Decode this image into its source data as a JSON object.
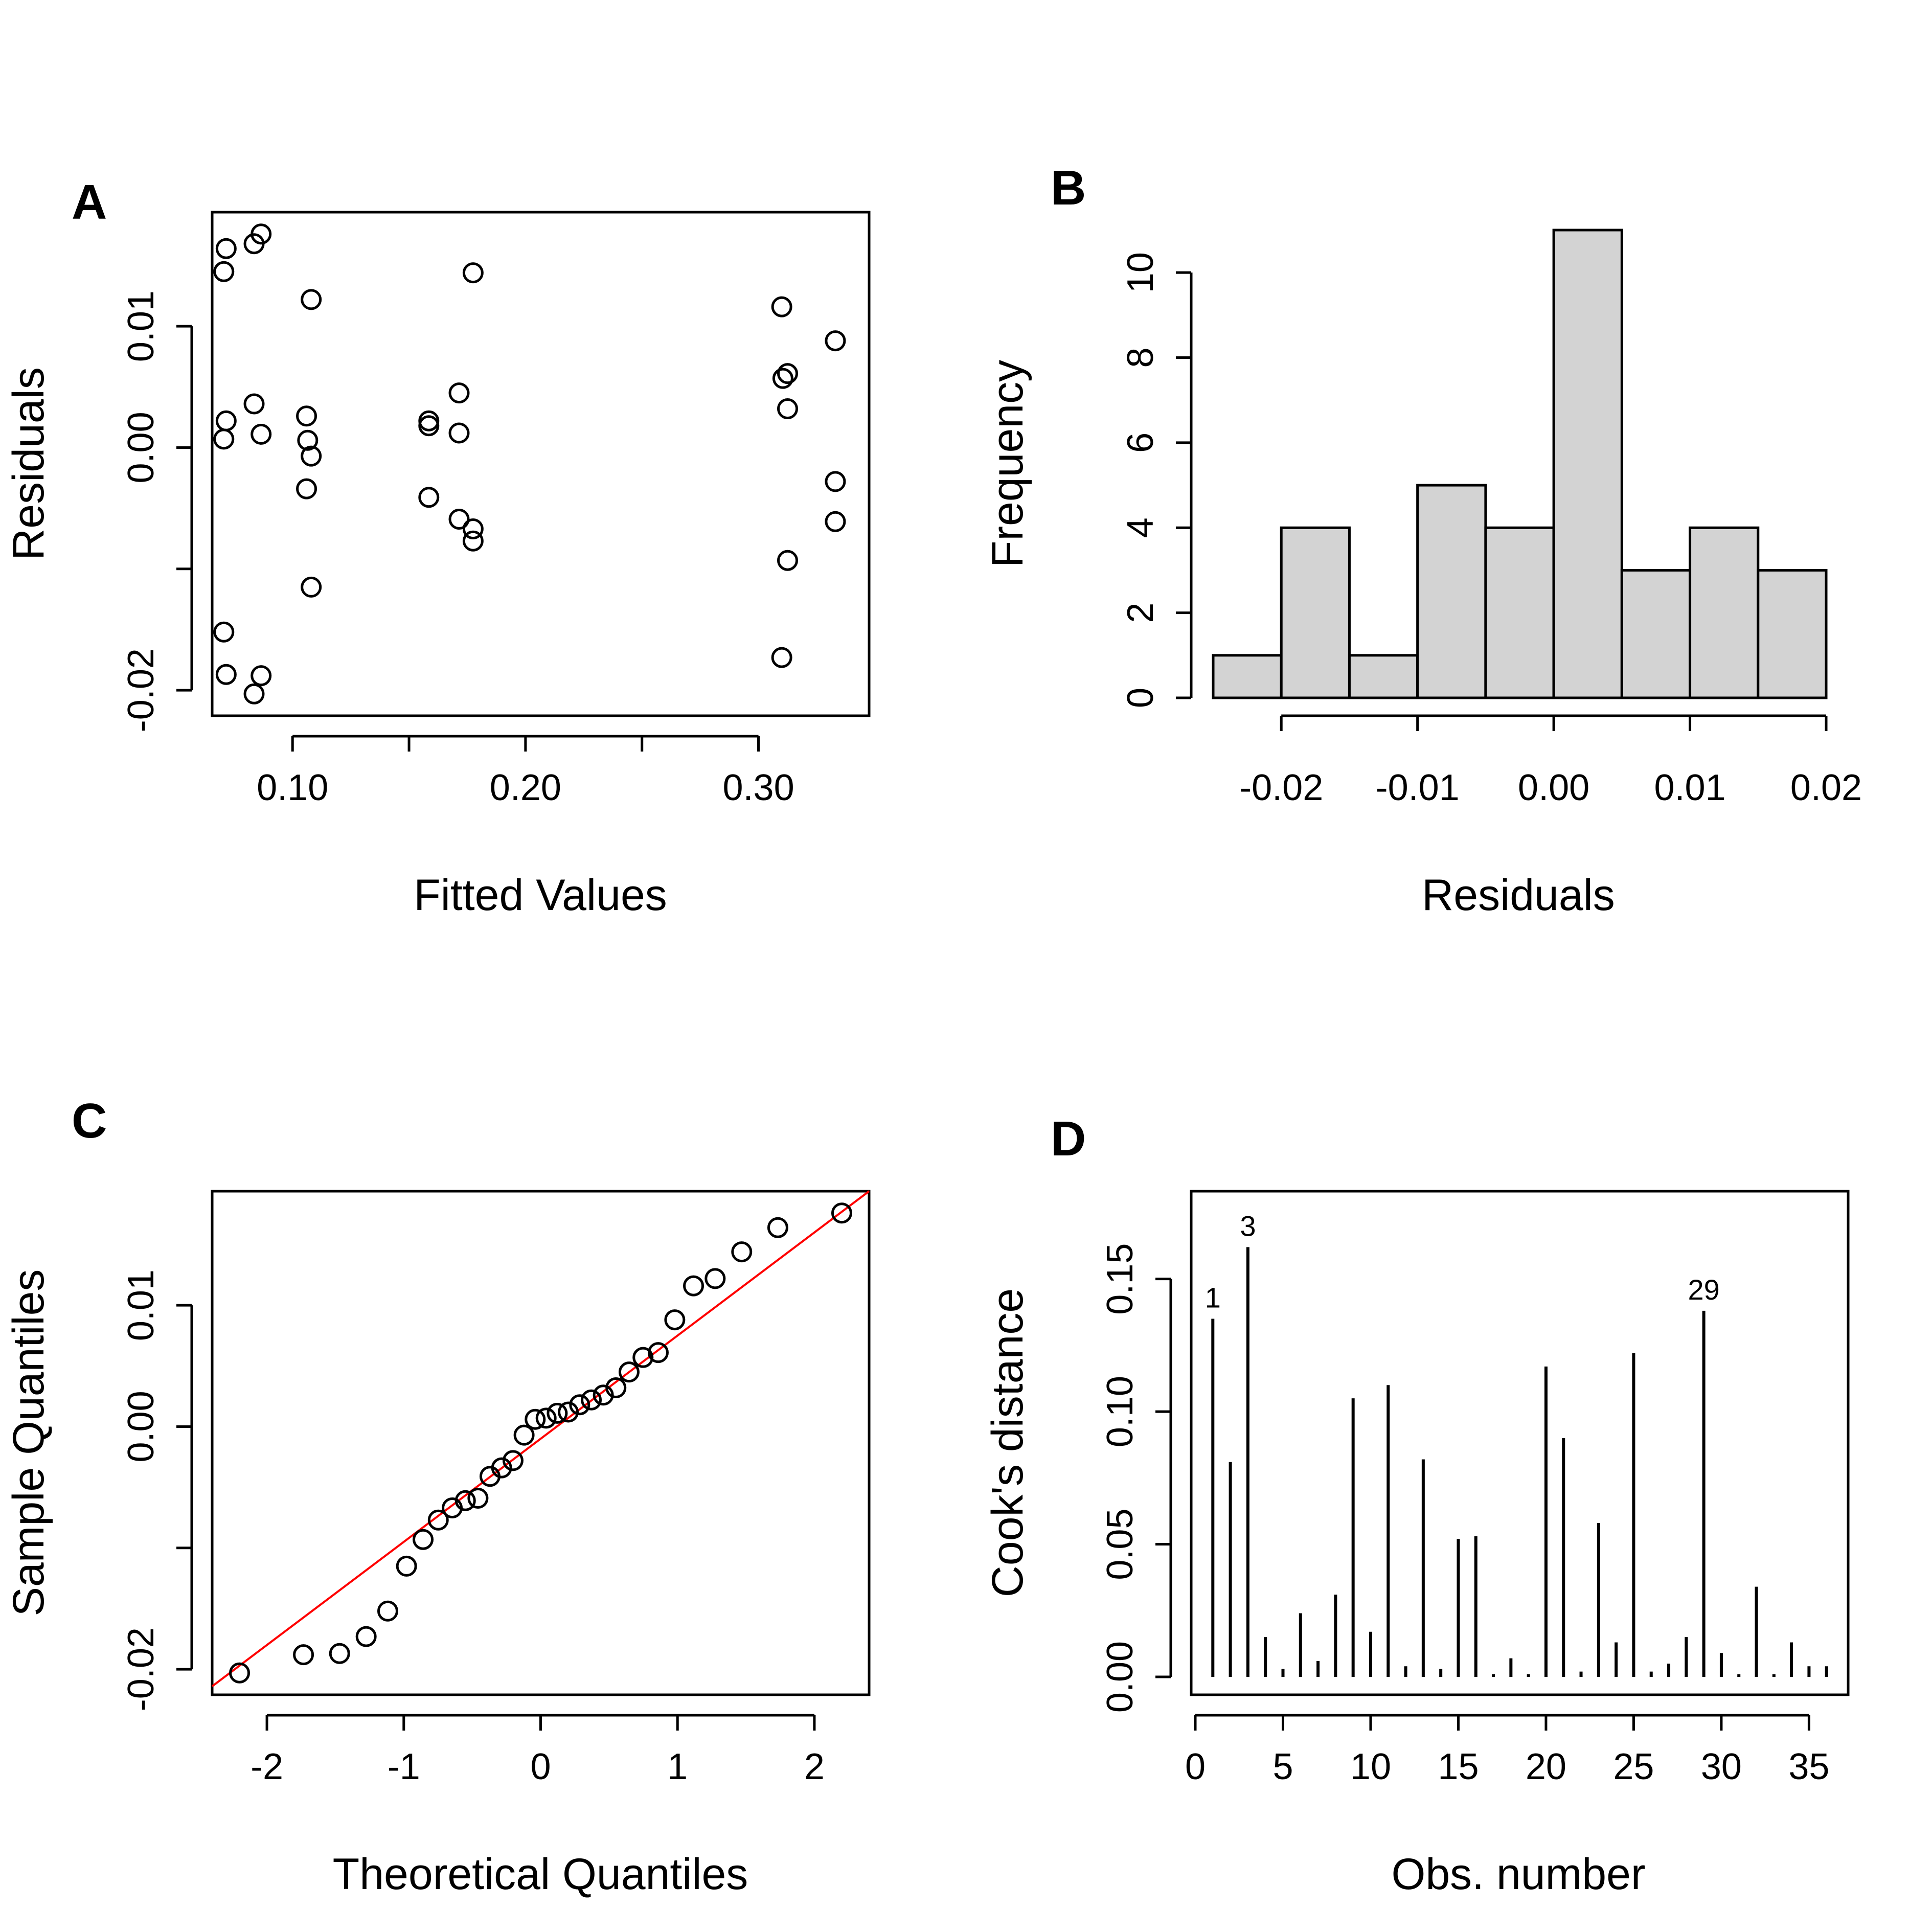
{
  "chart_data": [
    {
      "type": "scatter",
      "panel_label": "A",
      "xlabel": "Fitted Values",
      "ylabel": "Residuals",
      "xlim": [
        0.0655,
        0.3475
      ],
      "ylim": [
        -0.0221,
        0.0194
      ],
      "xticks": [
        0.1,
        0.15,
        0.2,
        0.25,
        0.3
      ],
      "xtick_labels": [
        "0.10",
        "",
        "0.20",
        "",
        "0.30"
      ],
      "yticks": [
        -0.02,
        -0.01,
        0.0,
        0.01
      ],
      "ytick_labels": [
        "-0.02",
        "",
        "0.00",
        "0.01"
      ],
      "x": [
        0.0715,
        0.0705,
        0.0835,
        0.0865,
        0.108,
        0.0715,
        0.0835,
        0.0705,
        0.0865,
        0.106,
        0.1065,
        0.108,
        0.106,
        0.108,
        0.0705,
        0.0715,
        0.0865,
        0.0835,
        0.1775,
        0.1585,
        0.1585,
        0.1715,
        0.1715,
        0.1585,
        0.1715,
        0.1775,
        0.1775,
        0.31,
        0.333,
        0.3105,
        0.3125,
        0.3125,
        0.333,
        0.333,
        0.3125,
        0.31
      ],
      "y": [
        0.0164,
        0.0145,
        0.0168,
        0.0176,
        0.0122,
        0.0022,
        0.0036,
        0.0007,
        0.0011,
        0.0026,
        0.0006,
        -0.0007,
        -0.0034,
        -0.0115,
        -0.0152,
        -0.0187,
        -0.0188,
        -0.0203,
        0.0144,
        0.0022,
        0.0018,
        0.0045,
        0.0012,
        -0.0041,
        -0.0059,
        -0.0067,
        -0.0077,
        0.0116,
        0.0088,
        0.0057,
        0.0061,
        0.0032,
        -0.0028,
        -0.0061,
        -0.0093,
        -0.0173
      ]
    },
    {
      "type": "bar",
      "subtype": "histogram",
      "panel_label": "B",
      "xlabel": "Residuals",
      "ylabel": "Frequency",
      "bin_edges": [
        -0.025,
        -0.02,
        -0.015,
        -0.01,
        -0.005,
        0.0,
        0.005,
        0.01,
        0.015,
        0.02
      ],
      "values": [
        1,
        4,
        1,
        5,
        4,
        11,
        3,
        4,
        3
      ],
      "xlim": [
        -0.025,
        0.02
      ],
      "ylim": [
        0,
        11
      ],
      "xticks": [
        -0.02,
        -0.01,
        0.0,
        0.01,
        0.02
      ],
      "xtick_labels": [
        "-0.02",
        "-0.01",
        "0.00",
        "0.01",
        "0.02"
      ],
      "yticks": [
        0,
        2,
        4,
        6,
        8,
        10
      ],
      "ytick_labels": [
        "0",
        "2",
        "4",
        "6",
        "8",
        "10"
      ]
    },
    {
      "type": "scatter",
      "subtype": "qq",
      "panel_label": "C",
      "xlabel": "Theoretical Quantiles",
      "ylabel": "Sample Quantiles",
      "xlim": [
        -2.4,
        2.4
      ],
      "ylim": [
        -0.0221,
        0.0194
      ],
      "xticks": [
        -2,
        -1,
        0,
        1,
        2
      ],
      "xtick_labels": [
        "-2",
        "-1",
        "0",
        "1",
        "2"
      ],
      "yticks": [
        -0.02,
        -0.01,
        0.0,
        0.01
      ],
      "ytick_labels": [
        "-0.02",
        "",
        "0.00",
        "0.01"
      ],
      "x": [
        -2.2,
        -1.733,
        -1.469,
        -1.275,
        -1.117,
        -0.98,
        -0.859,
        -0.748,
        -0.646,
        -0.55,
        -0.458,
        -0.37,
        -0.285,
        -0.202,
        -0.121,
        -0.04,
        0.04,
        0.121,
        0.202,
        0.285,
        0.37,
        0.458,
        0.55,
        0.646,
        0.748,
        0.859,
        0.98,
        1.117,
        1.275,
        1.469,
        1.733,
        2.2
      ],
      "y": [
        -0.0203,
        -0.0188,
        -0.0187,
        -0.0173,
        -0.0152,
        -0.0115,
        -0.0093,
        -0.0077,
        -0.0067,
        -0.0061,
        -0.0059,
        -0.0041,
        -0.0034,
        -0.0028,
        -0.0007,
        0.0006,
        0.0007,
        0.0011,
        0.0012,
        0.0018,
        0.0022,
        0.0026,
        0.0032,
        0.0045,
        0.0057,
        0.0061,
        0.0088,
        0.0116,
        0.0122,
        0.0144,
        0.0164,
        0.0176
      ],
      "qqline": {
        "x": [
          -2.4,
          2.4
        ],
        "y": [
          -0.0214,
          0.0194
        ],
        "color": "#ff0000"
      }
    },
    {
      "type": "bar",
      "subtype": "spike",
      "panel_label": "D",
      "xlabel": "Obs. number",
      "ylabel": "Cook's distance",
      "xlim": [
        0,
        37
      ],
      "ylim": [
        0,
        0.18
      ],
      "xticks": [
        0,
        5,
        10,
        15,
        20,
        25,
        30,
        35
      ],
      "xtick_labels": [
        "0",
        "5",
        "10",
        "15",
        "20",
        "25",
        "30",
        "35"
      ],
      "yticks": [
        0.0,
        0.05,
        0.1,
        0.15
      ],
      "ytick_labels": [
        "0.00",
        "0.05",
        "0.10",
        "0.15"
      ],
      "x": [
        1,
        2,
        3,
        4,
        5,
        6,
        7,
        8,
        9,
        10,
        11,
        12,
        13,
        14,
        15,
        16,
        17,
        18,
        19,
        20,
        21,
        22,
        23,
        24,
        25,
        26,
        27,
        28,
        29,
        30,
        31,
        32,
        33,
        34,
        35,
        36
      ],
      "values": [
        0.135,
        0.081,
        0.162,
        0.015,
        0.003,
        0.024,
        0.006,
        0.031,
        0.105,
        0.017,
        0.11,
        0.004,
        0.082,
        0.003,
        0.052,
        0.053,
        0.001,
        0.007,
        0.001,
        0.117,
        0.09,
        0.002,
        0.058,
        0.013,
        0.122,
        0.002,
        0.005,
        0.015,
        0.138,
        0.009,
        0.001,
        0.034,
        0.001,
        0.013,
        0.004,
        0.004
      ],
      "labels": [
        {
          "obs": 1,
          "text": "1"
        },
        {
          "obs": 3,
          "text": "3"
        },
        {
          "obs": 29,
          "text": "29"
        }
      ]
    }
  ]
}
